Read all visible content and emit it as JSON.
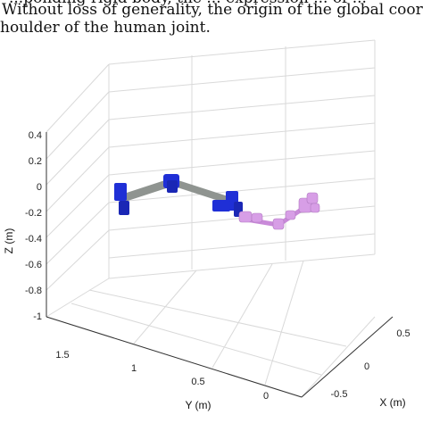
{
  "caption": {
    "line0": "...ponding rigid body, the ... expression ... of ...",
    "line1": "Without loss of generality, the origin of the global coordinate syste",
    "line2": "houlder of the human joint."
  },
  "plot": {
    "z_label": "Z (m)",
    "y_label": "Y (m)",
    "x_label": "X (m)",
    "z_ticks": [
      "0.4",
      "0.2",
      "0",
      "-0.2",
      "-0.4",
      "-0.6",
      "-0.8",
      "-1"
    ],
    "y_ticks": [
      "1.5",
      "1",
      "0.5",
      "0"
    ],
    "x_ticks": [
      "0.5",
      "0",
      "-0.5"
    ],
    "colors": {
      "robot_joint": "#1f2fd6",
      "robot_link": "#8f9490",
      "human": "#d79ee6",
      "grid": "#d9d9d9",
      "axis": "#333333"
    }
  }
}
